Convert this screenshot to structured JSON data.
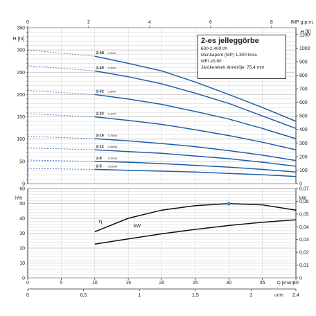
{
  "chart_data": [
    {
      "type": "line",
      "title": "2-es jelleggörbe",
      "info_lines": [
        "600-2.400 l/h",
        "Munkapont (MP) 1.800 l/óra",
        "MEI ≥0,80",
        "Járókerekek átmérője: 75,4 mm"
      ],
      "top_axis": {
        "label": "IMP g.p.m.",
        "ticks": [
          "0",
          "2",
          "4",
          "6",
          "8"
        ],
        "range": [
          0,
          8.8
        ]
      },
      "ylabel_left": "H [m]",
      "ylabel_right": "H [ft]",
      "ylim_left": [
        0,
        350
      ],
      "ylim_right": [
        0,
        1150
      ],
      "left_ticks": [
        0,
        50,
        100,
        150,
        200,
        250,
        300,
        350
      ],
      "right_ticks": [
        0,
        100,
        200,
        300,
        400,
        500,
        600,
        700,
        800,
        900,
        1000,
        1100
      ],
      "x": [
        0,
        10,
        15,
        20,
        25,
        30,
        35,
        40
      ],
      "x_unit": "Q [l/min]",
      "xlim": [
        0,
        40
      ],
      "grid": true,
      "series": [
        {
          "name": "2-48",
          "power": "2,2kW",
          "values": [
            300,
            286,
            270,
            253,
            228,
            200,
            171,
            140
          ]
        },
        {
          "name": "2-40",
          "power": "2,2kW",
          "values": [
            265,
            253,
            240,
            224,
            203,
            180,
            152,
            124
          ]
        },
        {
          "name": "2-32",
          "power": "1,5kW",
          "values": [
            209,
            200,
            190,
            178,
            162,
            145,
            124,
            101
          ]
        },
        {
          "name": "2-24",
          "power": "1,1kW",
          "values": [
            157,
            150,
            142,
            133,
            121,
            108,
            93,
            76
          ]
        },
        {
          "name": "2-16",
          "power": "0,75kW",
          "values": [
            106,
            101,
            96,
            90,
            83,
            74,
            64,
            52
          ]
        },
        {
          "name": "2-12",
          "power": "0,55kW",
          "values": [
            80,
            76,
            72,
            68,
            62,
            56,
            48,
            39
          ]
        },
        {
          "name": "2-8",
          "power": "0,37kW",
          "values": [
            53,
            50,
            48,
            45,
            41,
            37,
            32,
            26
          ]
        },
        {
          "name": "2-5",
          "power": "0,25kW",
          "values": [
            34,
            32,
            30,
            28,
            26,
            23,
            20,
            16
          ]
        }
      ]
    },
    {
      "type": "line",
      "ylabel_left": "h%",
      "ylabel_right": "kW",
      "ylim_left": [
        0,
        60
      ],
      "ylim_right": [
        0,
        0.07
      ],
      "left_ticks": [
        0,
        10,
        20,
        30,
        40,
        50,
        60
      ],
      "right_ticks": [
        "0",
        "0,01",
        "0,02",
        "0,03",
        "0,04",
        "0,05",
        "0,06",
        "0,07"
      ],
      "x": [
        10,
        15,
        20,
        25,
        30,
        35,
        40
      ],
      "x_ticks": [
        "0",
        "5",
        "10",
        "15",
        "20",
        "25",
        "30",
        "35",
        "40"
      ],
      "x_label": "Q [l/min]",
      "m3h_ticks": [
        "0",
        "0,5",
        "1",
        "1,5",
        "2",
        "2,4"
      ],
      "m3h_label": "m³/h",
      "grid": true,
      "series": [
        {
          "name": "η",
          "axis": "left",
          "values": [
            31,
            40,
            45.5,
            48.5,
            49.8,
            49,
            45.5
          ]
        },
        {
          "name": "kW",
          "axis": "right",
          "values": [
            0.0265,
            0.0305,
            0.0345,
            0.038,
            0.041,
            0.0435,
            0.0455
          ]
        }
      ],
      "marker": {
        "x": 30,
        "y": 49.8,
        "color": "#2b8fe0"
      }
    }
  ],
  "colors": {
    "curve": "#1f5fa8",
    "grid": "#bbbbbb",
    "axis": "#333333",
    "dashed": "#2e6fba",
    "marker": "#2b8fe0"
  }
}
